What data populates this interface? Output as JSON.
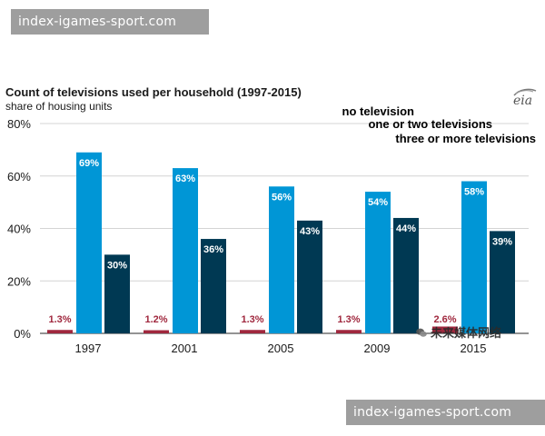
{
  "watermarks": {
    "top": "index-igames-sport.com",
    "bottom": "index-igames-sport.com",
    "wechat": "未来媒体网络"
  },
  "logo": {
    "text": "eia"
  },
  "chart_data": {
    "type": "bar",
    "title": "Count of televisions used per household (1997-2015)",
    "subtitle": "share of housing units",
    "categories": [
      "1997",
      "2001",
      "2005",
      "2009",
      "2015"
    ],
    "series": [
      {
        "name": "no television",
        "color": "#a0283e",
        "values": [
          1.3,
          1.2,
          1.3,
          1.3,
          2.6
        ],
        "labels": [
          "1.3%",
          "1.2%",
          "1.3%",
          "1.3%",
          "2.6%"
        ]
      },
      {
        "name": "one or two televisions",
        "color": "#0096d6",
        "values": [
          69,
          63,
          56,
          54,
          58
        ],
        "labels": [
          "69%",
          "63%",
          "56%",
          "54%",
          "58%"
        ]
      },
      {
        "name": "three or more televisions",
        "color": "#003953",
        "values": [
          30,
          36,
          43,
          44,
          39
        ],
        "labels": [
          "30%",
          "36%",
          "43%",
          "44%",
          "39%"
        ]
      }
    ],
    "y_ticks": [
      0,
      20,
      40,
      60,
      80
    ],
    "y_tick_labels": [
      "0%",
      "20%",
      "40%",
      "60%",
      "80%"
    ],
    "ylim": [
      0,
      80
    ],
    "grid": true,
    "legend_position": "top-right"
  }
}
